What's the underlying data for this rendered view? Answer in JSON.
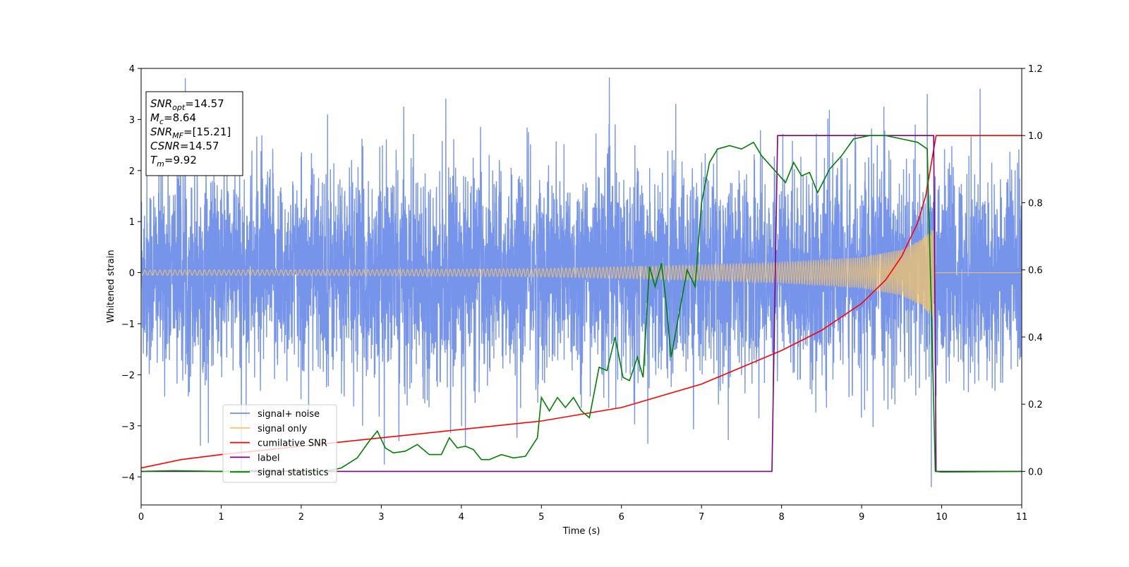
{
  "chart_data": {
    "type": "line",
    "xlabel": "Time (s)",
    "ylabel": "Whitened strain",
    "xlim": [
      0,
      11
    ],
    "ylim": [
      -4.55,
      4.0
    ],
    "y2lim": [
      -0.1,
      1.2
    ],
    "xticks": [
      "0",
      "1",
      "2",
      "3",
      "4",
      "5",
      "6",
      "7",
      "8",
      "9",
      "10",
      "11"
    ],
    "yticks": [
      "4",
      "3",
      "2",
      "1",
      "0",
      "−1",
      "−2",
      "−3",
      "−4"
    ],
    "y2ticks": [
      "1.2",
      "1.0",
      "0.8",
      "0.6",
      "0.4",
      "0.2",
      "0.0"
    ],
    "annotation": {
      "lines": [
        {
          "sym": "SNR",
          "sub": "opt",
          "value": "=14.57"
        },
        {
          "sym": "M",
          "sub": "c",
          "value": "=8.64"
        },
        {
          "sym": "SNR",
          "sub": "MF",
          "value": "=[15.21]"
        },
        {
          "sym": "CSNR",
          "sub": "",
          "value": "=14.57"
        },
        {
          "sym": "T",
          "sub": "m",
          "value": "=9.92"
        }
      ]
    },
    "legend": {
      "position": "lower-left",
      "entries": [
        "signal+ noise",
        "signal only",
        "cumilative SNR",
        "label",
        "signal statistics"
      ]
    },
    "series": [
      {
        "name": "signal+ noise",
        "axis": "left",
        "color": "#6f8ee8",
        "kind": "noise",
        "sigma": 1.0,
        "spikes": [
          [
            0.45,
            2.6
          ],
          [
            2.33,
            3.1
          ],
          [
            3.22,
            -3.3
          ],
          [
            4.05,
            -3.4
          ],
          [
            9.67,
            2.9
          ],
          [
            9.82,
            3.5
          ],
          [
            9.87,
            -4.2
          ],
          [
            10.48,
            3.6
          ],
          [
            6.33,
            -3.35
          ]
        ]
      },
      {
        "name": "signal only",
        "axis": "left",
        "color": "#f5c66b",
        "kind": "chirp",
        "t_merge": 9.92,
        "envelope": [
          [
            0,
            0.05
          ],
          [
            3,
            0.06
          ],
          [
            5,
            0.08
          ],
          [
            7,
            0.15
          ],
          [
            8,
            0.2
          ],
          [
            9,
            0.3
          ],
          [
            9.5,
            0.45
          ],
          [
            9.75,
            0.65
          ],
          [
            9.9,
            0.9
          ],
          [
            9.92,
            0.0
          ],
          [
            11,
            0.0
          ]
        ]
      },
      {
        "name": "cumilative SNR",
        "axis": "right",
        "color": "#ff0000",
        "points": [
          [
            0,
            0.01
          ],
          [
            0.5,
            0.035
          ],
          [
            1,
            0.05
          ],
          [
            2,
            0.075
          ],
          [
            3,
            0.1
          ],
          [
            4,
            0.125
          ],
          [
            5,
            0.15
          ],
          [
            6,
            0.19
          ],
          [
            7,
            0.26
          ],
          [
            8,
            0.36
          ],
          [
            8.5,
            0.42
          ],
          [
            9,
            0.5
          ],
          [
            9.3,
            0.57
          ],
          [
            9.5,
            0.64
          ],
          [
            9.7,
            0.74
          ],
          [
            9.8,
            0.82
          ],
          [
            9.88,
            0.93
          ],
          [
            9.93,
            1.0
          ],
          [
            11,
            1.0
          ]
        ]
      },
      {
        "name": "label",
        "axis": "right",
        "color": "#800080",
        "points": [
          [
            0,
            0.0
          ],
          [
            7.88,
            0.0
          ],
          [
            7.95,
            1.0
          ],
          [
            9.9,
            1.0
          ],
          [
            9.93,
            0.0
          ],
          [
            11,
            0.0
          ]
        ]
      },
      {
        "name": "signal statistics",
        "axis": "right",
        "color": "#008000",
        "points": [
          [
            0,
            0.0
          ],
          [
            0.4,
            0.002
          ],
          [
            1,
            0.0
          ],
          [
            1.5,
            0.003
          ],
          [
            2.0,
            0.001
          ],
          [
            2.3,
            0.0
          ],
          [
            2.5,
            0.01
          ],
          [
            2.7,
            0.04
          ],
          [
            2.85,
            0.09
          ],
          [
            2.95,
            0.12
          ],
          [
            3.05,
            0.07
          ],
          [
            3.15,
            0.055
          ],
          [
            3.3,
            0.06
          ],
          [
            3.45,
            0.08
          ],
          [
            3.6,
            0.05
          ],
          [
            3.75,
            0.05
          ],
          [
            3.85,
            0.1
          ],
          [
            3.95,
            0.07
          ],
          [
            4.05,
            0.075
          ],
          [
            4.15,
            0.065
          ],
          [
            4.25,
            0.035
          ],
          [
            4.35,
            0.035
          ],
          [
            4.5,
            0.05
          ],
          [
            4.65,
            0.04
          ],
          [
            4.8,
            0.045
          ],
          [
            4.95,
            0.1
          ],
          [
            5.0,
            0.22
          ],
          [
            5.1,
            0.18
          ],
          [
            5.2,
            0.22
          ],
          [
            5.3,
            0.19
          ],
          [
            5.4,
            0.22
          ],
          [
            5.5,
            0.18
          ],
          [
            5.6,
            0.16
          ],
          [
            5.72,
            0.31
          ],
          [
            5.82,
            0.3
          ],
          [
            5.92,
            0.4
          ],
          [
            6.02,
            0.28
          ],
          [
            6.1,
            0.27
          ],
          [
            6.2,
            0.34
          ],
          [
            6.27,
            0.28
          ],
          [
            6.35,
            0.61
          ],
          [
            6.42,
            0.55
          ],
          [
            6.5,
            0.62
          ],
          [
            6.55,
            0.52
          ],
          [
            6.62,
            0.34
          ],
          [
            6.72,
            0.47
          ],
          [
            6.82,
            0.6
          ],
          [
            6.92,
            0.55
          ],
          [
            7.0,
            0.8
          ],
          [
            7.1,
            0.92
          ],
          [
            7.2,
            0.96
          ],
          [
            7.35,
            0.97
          ],
          [
            7.5,
            0.96
          ],
          [
            7.65,
            0.98
          ],
          [
            7.75,
            0.94
          ],
          [
            7.9,
            0.9
          ],
          [
            8.05,
            0.86
          ],
          [
            8.15,
            0.92
          ],
          [
            8.25,
            0.88
          ],
          [
            8.35,
            0.89
          ],
          [
            8.45,
            0.83
          ],
          [
            8.6,
            0.9
          ],
          [
            8.75,
            0.94
          ],
          [
            8.9,
            0.99
          ],
          [
            9.1,
            1.0
          ],
          [
            9.3,
            1.0
          ],
          [
            9.5,
            0.99
          ],
          [
            9.7,
            0.98
          ],
          [
            9.82,
            0.96
          ],
          [
            9.88,
            0.4
          ],
          [
            9.92,
            0.0
          ],
          [
            10,
            -0.002
          ],
          [
            11,
            0.0
          ]
        ]
      }
    ]
  }
}
